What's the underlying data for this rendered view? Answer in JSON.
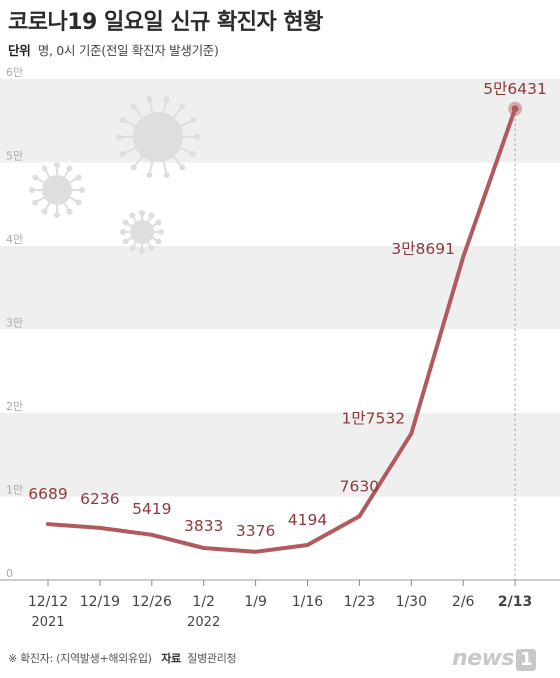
{
  "title": "코로나19 일요일 신규 확진자 현황",
  "subtitle_label": "단위",
  "subtitle_text": "명, 0시 기준(전일 확진자 발생기준)",
  "footnote_note": "※ 확진자: (지역발생+해외유입)",
  "footnote_source_label": "자료",
  "footnote_source": "질병관리청",
  "logo_text": "news",
  "logo_suffix": "1",
  "colors": {
    "line": "#b05a5e",
    "label": "#8e3a3e",
    "band": "#efefef",
    "axis": "#444444",
    "ytick": "#aaaaaa"
  },
  "chart_data": {
    "type": "line",
    "title": "코로나19 일요일 신규 확진자 현황",
    "unit": "명",
    "categories": [
      "12/12",
      "12/19",
      "12/26",
      "1/2",
      "1/9",
      "1/16",
      "1/23",
      "1/30",
      "2/6",
      "2/13"
    ],
    "year_labels": [
      {
        "category": "12/12",
        "year": "2021"
      },
      {
        "category": "1/2",
        "year": "2022"
      }
    ],
    "values": [
      6689,
      6236,
      5419,
      3833,
      3376,
      4194,
      7630,
      17532,
      38691,
      56431
    ],
    "value_labels": [
      "6689",
      "6236",
      "5419",
      "3833",
      "3376",
      "4194",
      "7630",
      "1만7532",
      "3만8691",
      "5만6431"
    ],
    "ylim": [
      0,
      60000
    ],
    "yticks": [
      0,
      10000,
      20000,
      30000,
      40000,
      50000,
      60000
    ],
    "ytick_labels": [
      "0",
      "1만",
      "2만",
      "3만",
      "4만",
      "5만",
      "6만"
    ],
    "grid": "alternating horizontal bands",
    "highlight_category": "2/13"
  }
}
